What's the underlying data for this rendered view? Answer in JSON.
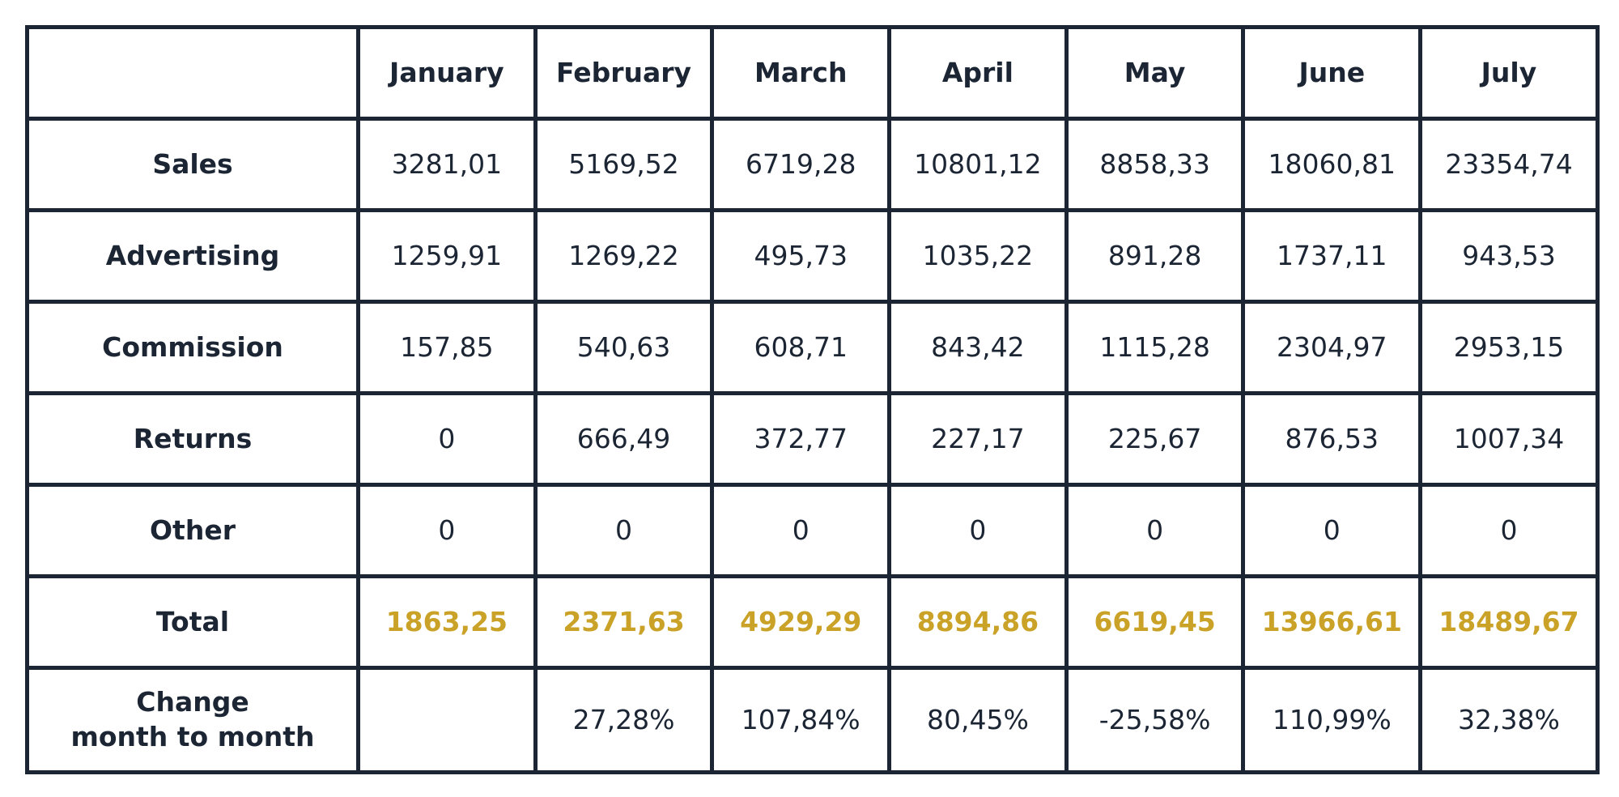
{
  "table": {
    "columns": [
      "",
      "January",
      "February",
      "March",
      "April",
      "May",
      "June",
      "July"
    ],
    "rows": [
      {
        "label": "Sales",
        "values": [
          "3281,01",
          "5169,52",
          "6719,28",
          "10801,12",
          "8858,33",
          "18060,81",
          "23354,74"
        ]
      },
      {
        "label": "Advertising",
        "values": [
          "1259,91",
          "1269,22",
          "495,73",
          "1035,22",
          "891,28",
          "1737,11",
          "943,53"
        ]
      },
      {
        "label": "Commission",
        "values": [
          "157,85",
          "540,63",
          "608,71",
          "843,42",
          "1115,28",
          "2304,97",
          "2953,15"
        ]
      },
      {
        "label": "Returns",
        "values": [
          "0",
          "666,49",
          "372,77",
          "227,17",
          "225,67",
          "876,53",
          "1007,34"
        ]
      },
      {
        "label": "Other",
        "values": [
          "0",
          "0",
          "0",
          "0",
          "0",
          "0",
          "0"
        ]
      },
      {
        "label": "Total",
        "values": [
          "1863,25",
          "2371,63",
          "4929,29",
          "8894,86",
          "6619,45",
          "13966,61",
          "18489,67"
        ]
      },
      {
        "label_lines": [
          "Change",
          "month to month"
        ],
        "values": [
          "",
          "27,28%",
          "107,84%",
          "80,45%",
          "-25,58%",
          "110,99%",
          "32,38%"
        ]
      }
    ]
  },
  "colors": {
    "text": "#1b2533",
    "border": "#1b2533",
    "total_highlight": "#c9a227",
    "background": "#ffffff"
  }
}
